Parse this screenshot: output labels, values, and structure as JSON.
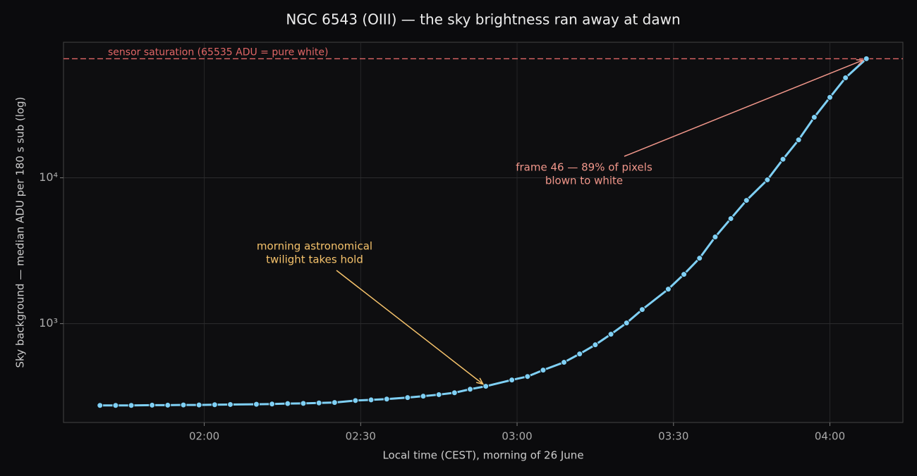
{
  "chart_data": {
    "type": "line",
    "title": "NGC 6543 (OIII) — the sky brightness ran away at dawn",
    "x_label": "Local time (CEST), morning of 26 June",
    "y_label": "Sky background — median ADU per 180 s sub (log)",
    "x": [
      "01:40",
      "01:43",
      "01:46",
      "01:50",
      "01:53",
      "01:56",
      "01:59",
      "02:02",
      "02:05",
      "02:10",
      "02:13",
      "02:16",
      "02:19",
      "02:22",
      "02:25",
      "02:29",
      "02:32",
      "02:35",
      "02:39",
      "02:42",
      "02:45",
      "02:48",
      "02:51",
      "02:54",
      "02:59",
      "03:02",
      "03:05",
      "03:09",
      "03:12",
      "03:15",
      "03:18",
      "03:21",
      "03:24",
      "03:29",
      "03:32",
      "03:35",
      "03:38",
      "03:41",
      "03:44",
      "03:48",
      "03:51",
      "03:54",
      "03:57",
      "04:00",
      "04:03",
      "04:07"
    ],
    "series": [
      {
        "name": "Sky background",
        "color": "#7fd0f5",
        "values": [
          275,
          275,
          275,
          276,
          276,
          277,
          277,
          278,
          279,
          280,
          281,
          283,
          284,
          286,
          288,
          297,
          300,
          304,
          311,
          318,
          326,
          336,
          355,
          372,
          411,
          434,
          480,
          543,
          620,
          716,
          846,
          1011,
          1249,
          1724,
          2178,
          2810,
          3930,
          5250,
          7000,
          9680,
          13400,
          18200,
          26000,
          35600,
          48500,
          65535
        ]
      }
    ],
    "xlim": [
      "01:33",
      "04:14"
    ],
    "xticks": [
      "02:00",
      "02:30",
      "03:00",
      "03:30",
      "04:00"
    ],
    "ylim": [
      210,
      85000
    ],
    "yticks": [
      {
        "value": 1000,
        "label": "10³"
      },
      {
        "value": 10000,
        "label": "10⁴"
      }
    ],
    "log_y": true,
    "grid": true,
    "reference_line": {
      "value": 65535,
      "label": "sensor saturation (65535 ADU = pure white)",
      "color": "#e06666"
    },
    "annotations": [
      {
        "lines": [
          "frame 46 — 89% of pixels",
          "blown to white"
        ],
        "color": "#f0968a"
      },
      {
        "lines": [
          "morning astronomical",
          "twilight takes hold"
        ],
        "color": "#f5c26b"
      }
    ]
  }
}
